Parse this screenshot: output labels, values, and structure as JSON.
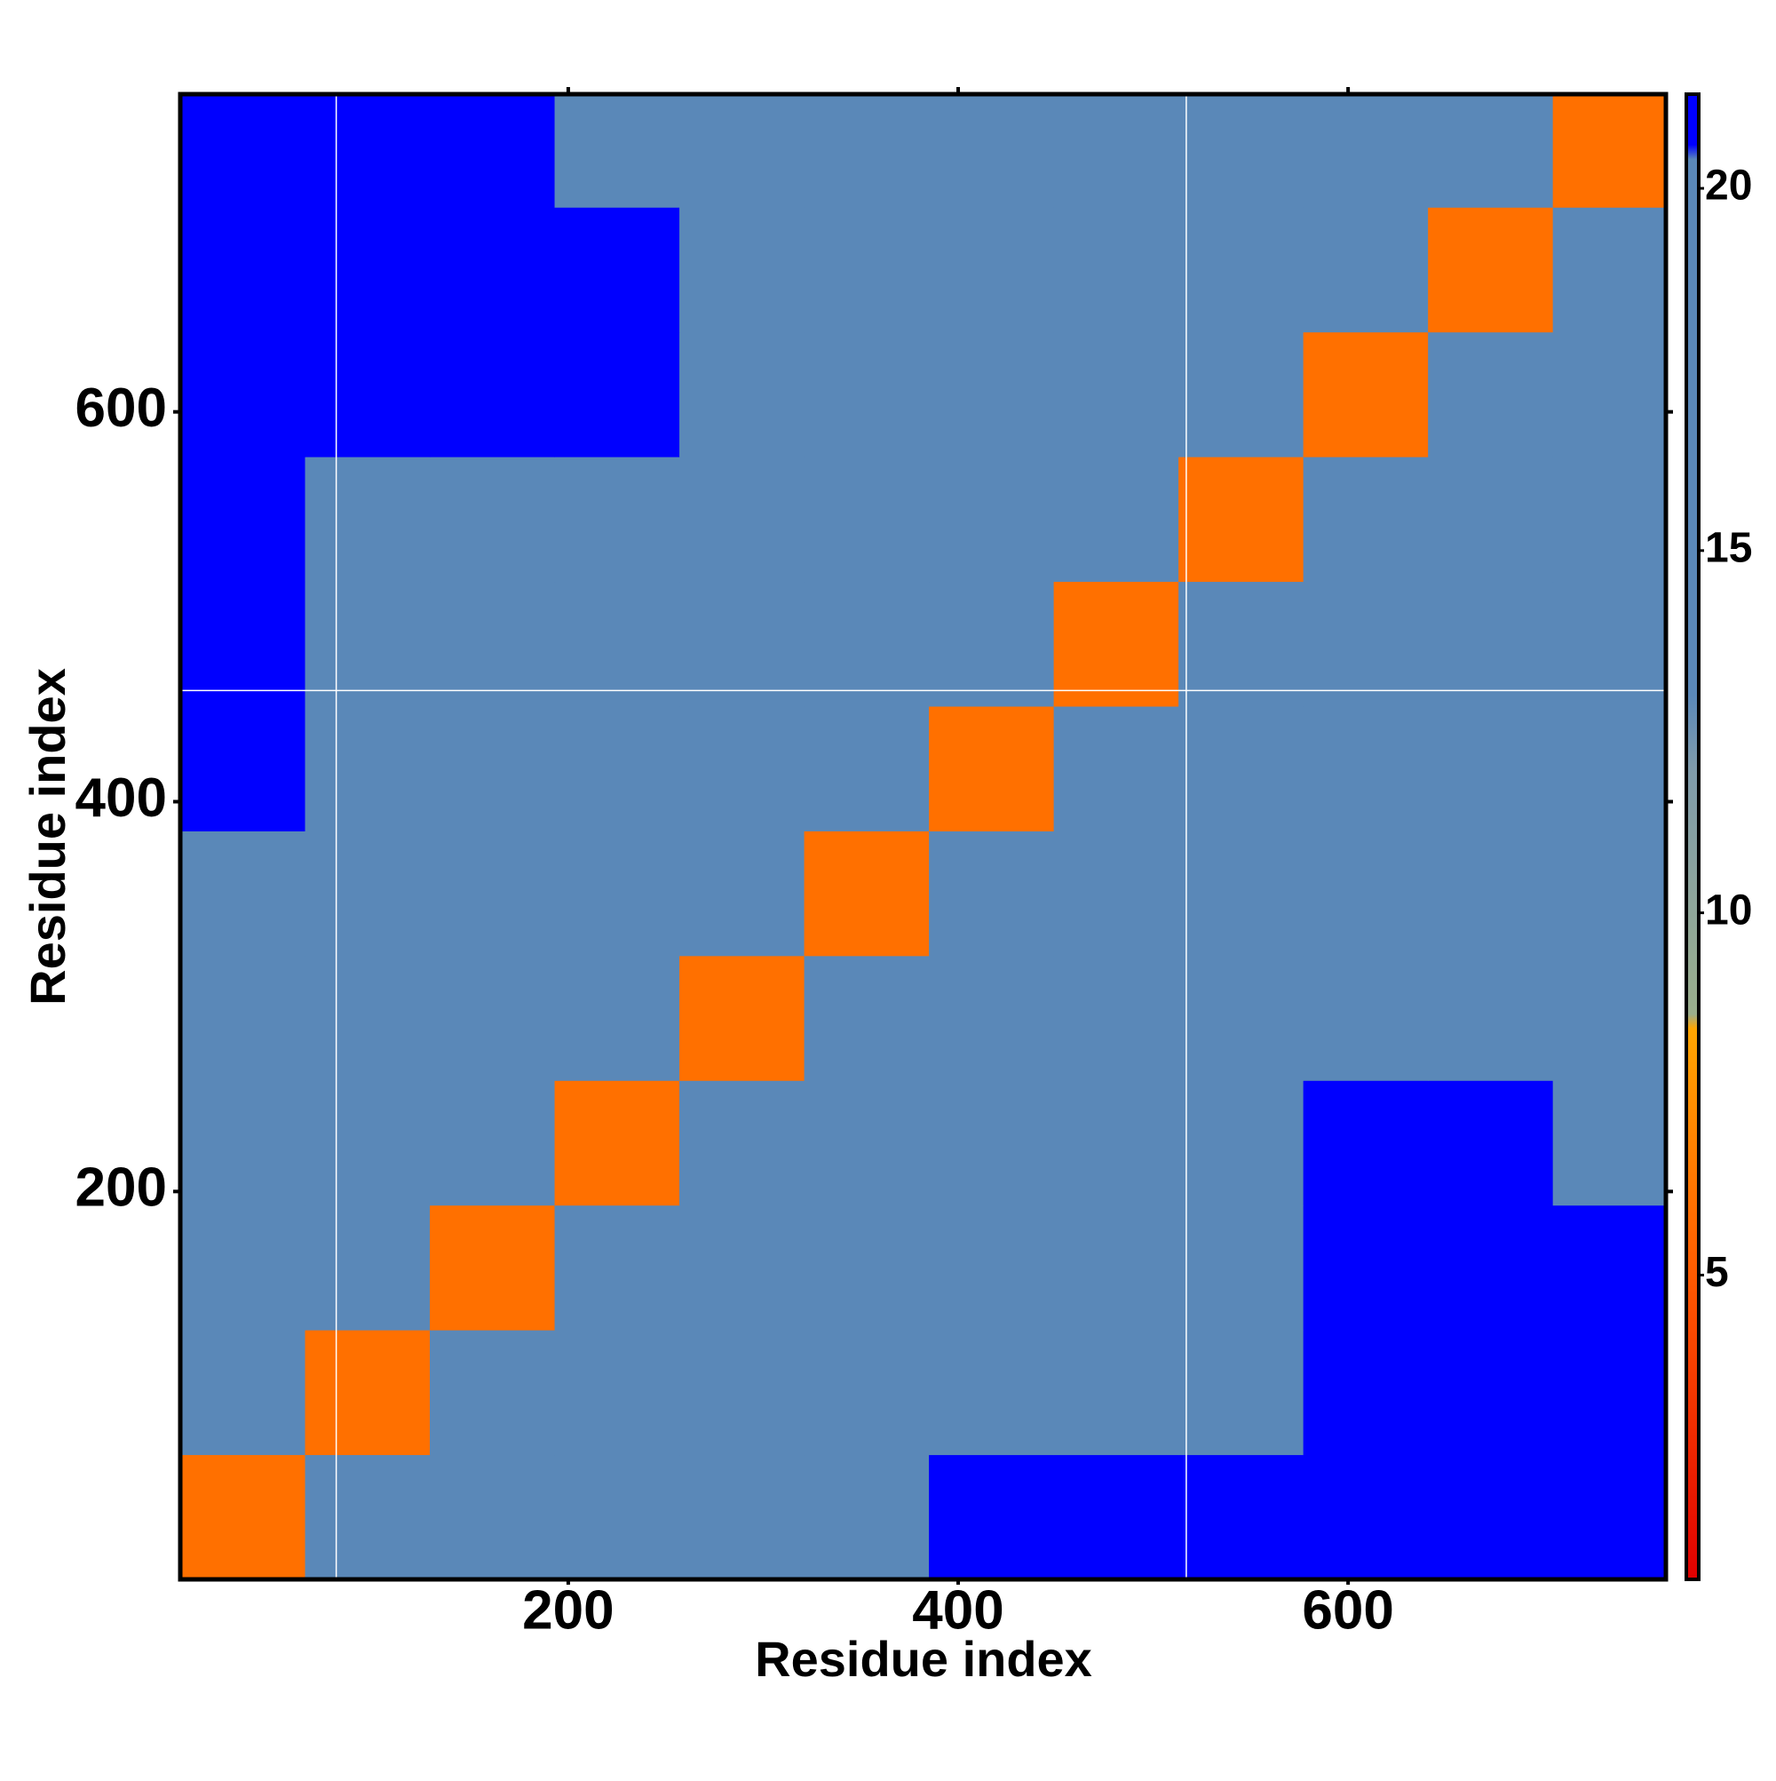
{
  "chart_data": {
    "type": "heatmap",
    "x_label": "Residue index",
    "y_label": "Residue index",
    "xlim": [
      1,
      763
    ],
    "ylim": [
      1,
      763
    ],
    "xticks": [
      200,
      400,
      600
    ],
    "yticks": [
      200,
      400,
      600
    ],
    "bins": [
      1,
      65,
      129,
      193,
      257,
      321,
      385,
      449,
      513,
      577,
      641,
      705,
      763
    ],
    "z": [
      [
        6,
        15,
        16,
        17,
        18,
        19,
        21,
        21,
        21,
        21,
        21,
        21
      ],
      [
        15,
        6,
        15,
        15,
        16,
        17,
        20,
        20,
        20,
        21,
        21,
        21
      ],
      [
        16,
        15,
        6,
        15,
        15,
        16,
        19,
        19,
        20,
        21,
        21,
        21
      ],
      [
        17,
        15,
        15,
        6,
        15,
        16,
        19,
        19,
        20,
        21,
        21,
        20
      ],
      [
        18,
        16,
        15,
        15,
        6,
        15,
        17,
        18,
        19,
        20,
        19,
        19
      ],
      [
        19,
        17,
        16,
        16,
        15,
        6,
        15,
        16,
        18,
        18,
        17,
        17
      ],
      [
        21,
        20,
        19,
        19,
        17,
        15,
        6,
        15,
        16,
        17,
        17,
        17
      ],
      [
        21,
        20,
        19,
        19,
        18,
        16,
        15,
        6,
        15,
        16,
        16,
        16
      ],
      [
        21,
        20,
        20,
        20,
        19,
        18,
        16,
        15,
        6,
        15,
        15,
        16
      ],
      [
        21,
        21,
        21,
        21,
        20,
        18,
        17,
        16,
        15,
        6,
        15,
        15
      ],
      [
        21,
        21,
        21,
        21,
        19,
        17,
        17,
        16,
        15,
        15,
        6,
        15
      ],
      [
        21,
        21,
        21,
        20,
        19,
        17,
        17,
        16,
        16,
        15,
        15,
        6
      ]
    ],
    "reference_lines": {
      "x": [
        81,
        517
      ],
      "y": [
        457
      ],
      "color": "#ffffff"
    },
    "colorscale": [
      {
        "value": 0.8,
        "color": "#e00000"
      },
      {
        "value": 5,
        "color": "#ff5a00"
      },
      {
        "value": 8.4,
        "color": "#ffa500"
      },
      {
        "value": 8.6,
        "color": "#9aae8c"
      },
      {
        "value": 12,
        "color": "#7f9bab"
      },
      {
        "value": 13,
        "color": "#5a88b8"
      },
      {
        "value": 20.4,
        "color": "#5a88b8"
      },
      {
        "value": 20.6,
        "color": "#0000ff"
      },
      {
        "value": 21.3,
        "color": "#0000ff"
      }
    ],
    "clim": [
      0.8,
      21.3
    ],
    "cticks": [
      5,
      10,
      15,
      20
    ]
  }
}
